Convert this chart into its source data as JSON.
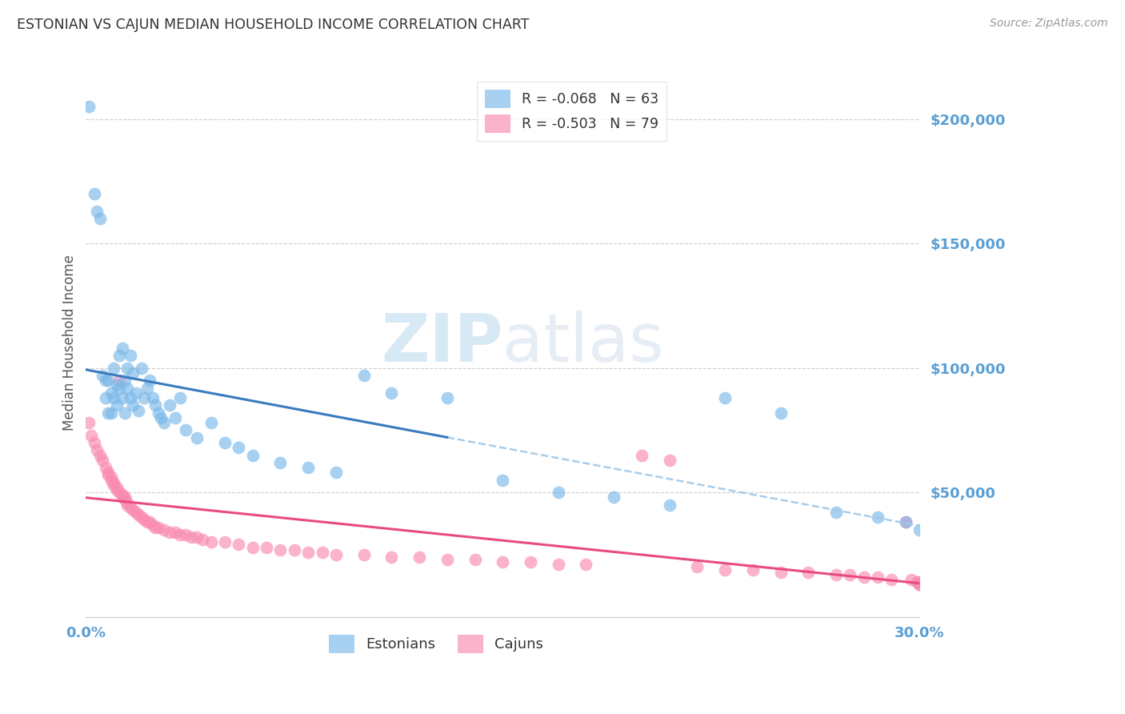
{
  "title": "ESTONIAN VS CAJUN MEDIAN HOUSEHOLD INCOME CORRELATION CHART",
  "source": "Source: ZipAtlas.com",
  "ylabel": "Median Household Income",
  "watermark_zip": "ZIP",
  "watermark_atlas": "atlas",
  "ylim": [
    0,
    220000
  ],
  "xlim": [
    0.0,
    0.3
  ],
  "yticks": [
    0,
    50000,
    100000,
    150000,
    200000
  ],
  "ytick_labels": [
    "",
    "$50,000",
    "$100,000",
    "$150,000",
    "$200,000"
  ],
  "xticks": [
    0.0,
    0.05,
    0.1,
    0.15,
    0.2,
    0.25,
    0.3
  ],
  "xtick_labels": [
    "0.0%",
    "",
    "",
    "",
    "",
    "",
    "30.0%"
  ],
  "legend_r_estonian": "R = -0.068",
  "legend_n_estonian": "N = 63",
  "legend_r_cajun": "R = -0.503",
  "legend_n_cajun": "N = 79",
  "estonian_color": "#7ab8e8",
  "cajun_color": "#f98bb0",
  "trendline_estonian_solid_color": "#3a7abf",
  "trendline_estonian_dashed_color": "#a0c8e8",
  "trendline_cajun_color": "#e84c7d",
  "background_color": "#ffffff",
  "grid_color": "#cccccc",
  "tick_color": "#5a9fd4",
  "title_color": "#333333",
  "source_color": "#999999",
  "estonian_x": [
    0.001,
    0.003,
    0.004,
    0.005,
    0.006,
    0.007,
    0.007,
    0.008,
    0.008,
    0.009,
    0.009,
    0.01,
    0.01,
    0.011,
    0.011,
    0.012,
    0.012,
    0.013,
    0.013,
    0.014,
    0.014,
    0.015,
    0.015,
    0.016,
    0.016,
    0.017,
    0.017,
    0.018,
    0.019,
    0.02,
    0.021,
    0.022,
    0.023,
    0.024,
    0.025,
    0.026,
    0.027,
    0.028,
    0.03,
    0.032,
    0.034,
    0.036,
    0.04,
    0.045,
    0.05,
    0.055,
    0.06,
    0.07,
    0.08,
    0.09,
    0.1,
    0.11,
    0.13,
    0.15,
    0.17,
    0.19,
    0.21,
    0.23,
    0.25,
    0.27,
    0.285,
    0.295,
    0.3
  ],
  "estonian_y": [
    205000,
    170000,
    163000,
    160000,
    97000,
    95000,
    88000,
    95000,
    82000,
    90000,
    82000,
    100000,
    88000,
    93000,
    85000,
    105000,
    92000,
    88000,
    108000,
    82000,
    95000,
    100000,
    92000,
    105000,
    88000,
    98000,
    85000,
    90000,
    83000,
    100000,
    88000,
    92000,
    95000,
    88000,
    85000,
    82000,
    80000,
    78000,
    85000,
    80000,
    88000,
    75000,
    72000,
    78000,
    70000,
    68000,
    65000,
    62000,
    60000,
    58000,
    97000,
    90000,
    88000,
    55000,
    50000,
    48000,
    45000,
    88000,
    82000,
    42000,
    40000,
    38000,
    35000
  ],
  "cajun_x": [
    0.001,
    0.002,
    0.003,
    0.004,
    0.005,
    0.006,
    0.007,
    0.008,
    0.008,
    0.009,
    0.009,
    0.01,
    0.01,
    0.011,
    0.011,
    0.012,
    0.012,
    0.013,
    0.013,
    0.014,
    0.014,
    0.015,
    0.015,
    0.016,
    0.017,
    0.018,
    0.019,
    0.02,
    0.021,
    0.022,
    0.023,
    0.024,
    0.025,
    0.026,
    0.028,
    0.03,
    0.032,
    0.034,
    0.036,
    0.038,
    0.04,
    0.042,
    0.045,
    0.05,
    0.055,
    0.06,
    0.065,
    0.07,
    0.075,
    0.08,
    0.085,
    0.09,
    0.1,
    0.11,
    0.12,
    0.13,
    0.14,
    0.15,
    0.16,
    0.17,
    0.18,
    0.2,
    0.21,
    0.22,
    0.23,
    0.24,
    0.25,
    0.26,
    0.27,
    0.275,
    0.28,
    0.285,
    0.29,
    0.295,
    0.297,
    0.299,
    0.3,
    0.3,
    0.3
  ],
  "cajun_y": [
    78000,
    73000,
    70000,
    67000,
    65000,
    63000,
    60000,
    58000,
    57000,
    56000,
    55000,
    54000,
    53000,
    52000,
    51000,
    50000,
    95000,
    49000,
    48000,
    47000,
    48000,
    46000,
    45000,
    44000,
    43000,
    42000,
    41000,
    40000,
    39000,
    38000,
    38000,
    37000,
    36000,
    36000,
    35000,
    34000,
    34000,
    33000,
    33000,
    32000,
    32000,
    31000,
    30000,
    30000,
    29000,
    28000,
    28000,
    27000,
    27000,
    26000,
    26000,
    25000,
    25000,
    24000,
    24000,
    23000,
    23000,
    22000,
    22000,
    21000,
    21000,
    65000,
    63000,
    20000,
    19000,
    19000,
    18000,
    18000,
    17000,
    17000,
    16000,
    16000,
    15000,
    38000,
    15000,
    14000,
    13000,
    14000,
    13000
  ]
}
